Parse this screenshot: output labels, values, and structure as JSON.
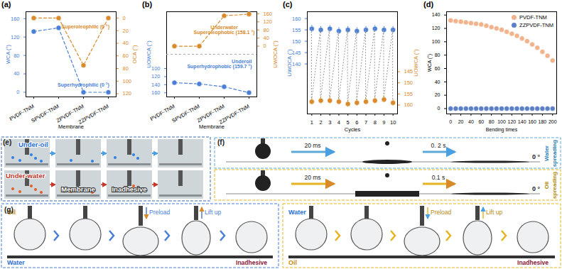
{
  "chart_data": [
    {
      "panel": "(a)",
      "type": "line",
      "line_style": "dashed",
      "marker": "circle",
      "x_label": "Membrane",
      "categories": [
        "PVDF-TNM",
        "SPVDF-TNM",
        "ZPVDF-TNM",
        "ZZPVDF-TNM"
      ],
      "y_label": "WCA (°)",
      "ylim": [
        -10,
        175
      ],
      "yticks": [
        0,
        40,
        80,
        120,
        160
      ],
      "y2_label": "OCA (°)",
      "y2lim": [
        125,
        -10
      ],
      "y2ticks": [
        0,
        20,
        40,
        60,
        80,
        100,
        120
      ],
      "series": [
        {
          "axis": "y",
          "color": "#4a7fd6",
          "values": [
            132,
            140,
            0,
            0
          ]
        },
        {
          "axis": "y2",
          "color": "#d98a2b",
          "values": [
            0,
            0,
            75,
            0
          ]
        }
      ],
      "annotations": [
        {
          "text": "Superoleophilic (0 °)",
          "color": "#d98a2b"
        },
        {
          "text": "Superhydrophilic (0 °)",
          "color": "#4a7fd6"
        }
      ]
    },
    {
      "panel": "(b)",
      "type": "line",
      "line_style": "dashed",
      "marker": "circle",
      "x_label": "Membrane",
      "categories": [
        "PVDF-TNM",
        "SPVDF-TNM",
        "ZPVDF-TNM",
        "ZZPVDF-TNM"
      ],
      "y_label": "UOWCA (°)",
      "ylim": [
        170,
        -40
      ],
      "yticks": [
        100,
        120,
        140,
        160
      ],
      "y2_label": "UWOCA (°)",
      "y2lim": [
        -250,
        170
      ],
      "y2ticks": [
        0,
        40,
        80,
        120,
        160
      ],
      "series": [
        {
          "axis": "y",
          "color": "#4a7fd6",
          "values": [
            135,
            138,
            145,
            159.7
          ]
        },
        {
          "axis": "y2",
          "color": "#d98a2b",
          "values": [
            0,
            0,
            150,
            158.1
          ]
        }
      ],
      "annotations": [
        {
          "text": "Underwater\nSuperoleophobic (158.1 °)",
          "color": "#d98a2b"
        },
        {
          "text": "Underoil\nSuperhydrophobic (159.7 °)",
          "color": "#4a7fd6"
        }
      ]
    },
    {
      "panel": "(c)",
      "type": "scatter",
      "line_style": "dotted",
      "marker": "circle",
      "x_label": "Cycles",
      "x": [
        1,
        2,
        3,
        4,
        5,
        6,
        7,
        8,
        9,
        10
      ],
      "xlim": [
        0.5,
        10.5
      ],
      "xticks": [
        1,
        2,
        3,
        4,
        5,
        6,
        7,
        8,
        9,
        10
      ],
      "y_label": "UWOCA (°)",
      "ylim": [
        118,
        163
      ],
      "yticks": [
        140,
        145,
        150,
        155,
        160
      ],
      "y2_label": "UOWCA (°)",
      "y2lim": [
        164,
        118
      ],
      "y2ticks": [
        145,
        150,
        155,
        160
      ],
      "series": [
        {
          "axis": "y",
          "color": "#4a7fd6",
          "values": [
            155.5,
            155,
            155.5,
            154.5,
            155,
            154.5,
            155,
            155.5,
            155,
            155
          ],
          "errors": [
            1.5,
            1.5,
            1.5,
            1.5,
            1.5,
            1.5,
            1.5,
            1.5,
            1.5,
            1.5
          ]
        },
        {
          "axis": "y2",
          "color": "#d98a2b",
          "values": [
            158.5,
            158,
            158,
            158.5,
            159.5,
            159,
            158.5,
            158,
            157.5,
            159
          ],
          "errors": [
            1.5,
            1.5,
            1.5,
            1.5,
            1.5,
            1.5,
            1.5,
            1.5,
            1.5,
            1.5
          ]
        }
      ]
    },
    {
      "panel": "(d)",
      "type": "scatter",
      "marker": "circle",
      "legend": "upper right",
      "x_label": "Bending times",
      "y_label": "WCA (°)",
      "x": [
        0,
        10,
        20,
        30,
        40,
        50,
        60,
        70,
        80,
        90,
        100,
        110,
        120,
        130,
        140,
        150,
        160,
        170,
        180,
        190,
        200
      ],
      "xlim": [
        -8,
        208
      ],
      "xticks": [
        0,
        20,
        40,
        60,
        80,
        100,
        120,
        140,
        160,
        180,
        200
      ],
      "ylim": [
        -8,
        145
      ],
      "yticks": [
        0,
        20,
        40,
        60,
        80,
        100,
        120,
        140
      ],
      "series": [
        {
          "name": "PVDF-TNM",
          "color": "#f2b38c",
          "values": [
            132,
            131,
            130,
            129,
            128,
            127,
            126,
            124,
            122,
            120,
            118,
            115,
            112,
            109,
            105,
            101,
            96,
            91,
            85,
            79,
            72
          ]
        },
        {
          "name": "ZZPVDF-TNM",
          "color": "#5b7fc4",
          "values": [
            0,
            0,
            0,
            0,
            0,
            0,
            0,
            0,
            0,
            0,
            0,
            0,
            0,
            0,
            0,
            0,
            0,
            0,
            0,
            0,
            0
          ]
        }
      ]
    }
  ],
  "figure_panels": [
    {
      "panel": "(e)",
      "rows": [
        "Under-oil",
        "Under-water"
      ],
      "labels": [
        "Membrane",
        "Inadhesive"
      ]
    },
    {
      "panel": "(f)",
      "rows": [
        {
          "title": "Water spreading",
          "steps": [
            "20 ms",
            "0. 2 s"
          ],
          "angle": "0 °"
        },
        {
          "title": "Oil spreading",
          "steps": [
            "20 ms",
            "0.1 s"
          ],
          "angle": "0 °"
        }
      ]
    },
    {
      "panel": "(g)",
      "boxes": [
        {
          "droplet": "Oil",
          "medium": "Water",
          "steps": [
            "Preload",
            "Lift up"
          ],
          "result": "Inadhesive"
        },
        {
          "droplet": "Water",
          "medium": "Oil",
          "steps": [
            "Preload",
            "Lift up"
          ],
          "result": "Inadhesive"
        }
      ]
    }
  ]
}
